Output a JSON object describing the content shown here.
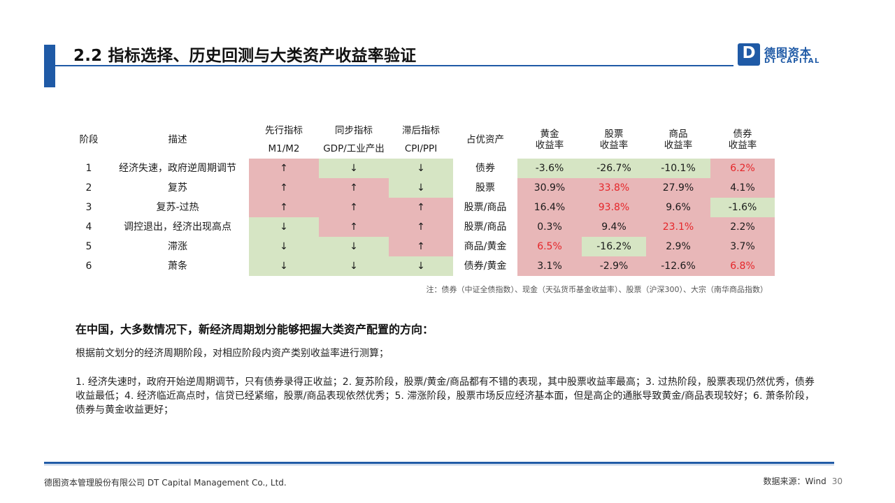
{
  "header": {
    "title": "2.2 指标选择、历史回测与大类资产收益率验证",
    "logo_mark": "D",
    "logo_cn": "德图资本",
    "logo_en": "DT CAPITAL"
  },
  "table": {
    "headers": {
      "stage": "阶段",
      "desc": "描述",
      "leading_top": "先行指标",
      "leading_bottom": "M1/M2",
      "sync_top": "同步指标",
      "sync_bottom": "GDP/工业产出",
      "lag_top": "滞后指标",
      "lag_bottom": "CPI/PPI",
      "dominant": "占优资产",
      "gold": "黄金\n收益率",
      "stock": "股票\n收益率",
      "commodity": "商品\n收益率",
      "bond": "债券\n收益率"
    },
    "rows": [
      {
        "stage": "1",
        "desc": "经济失速，政府逆周期调节",
        "m1": "↑",
        "gdp": "↓",
        "cpi": "↓",
        "dominant": "债券",
        "gold": "-3.6%",
        "stock": "-26.7%",
        "commodity": "-10.1%",
        "bond": "6.2%"
      },
      {
        "stage": "2",
        "desc": "复苏",
        "m1": "↑",
        "gdp": "↑",
        "cpi": "↓",
        "dominant": "股票",
        "gold": "30.9%",
        "stock": "33.8%",
        "commodity": "27.9%",
        "bond": "4.1%"
      },
      {
        "stage": "3",
        "desc": "复苏-过热",
        "m1": "↑",
        "gdp": "↑",
        "cpi": "↑",
        "dominant": "股票/商品",
        "gold": "16.4%",
        "stock": "93.8%",
        "commodity": "9.6%",
        "bond": "-1.6%"
      },
      {
        "stage": "4",
        "desc": "调控退出，经济出现高点",
        "m1": "↓",
        "gdp": "↑",
        "cpi": "↑",
        "dominant": "股票/商品",
        "gold": "0.3%",
        "stock": "9.4%",
        "commodity": "23.1%",
        "bond": "2.2%"
      },
      {
        "stage": "5",
        "desc": "滞涨",
        "m1": "↓",
        "gdp": "↓",
        "cpi": "↑",
        "dominant": "商品/黄金",
        "gold": "6.5%",
        "stock": "-16.2%",
        "commodity": "2.9%",
        "bond": "3.7%"
      },
      {
        "stage": "6",
        "desc": "萧条",
        "m1": "↓",
        "gdp": "↓",
        "cpi": "↓",
        "dominant": "债券/黄金",
        "gold": "3.1%",
        "stock": "-2.9%",
        "commodity": "-12.6%",
        "bond": "6.8%"
      }
    ],
    "note": "注：债券（中证全债指数）、现金（天弘货币基金收益率）、股票（沪深300）、大宗（南华商品指数）"
  },
  "body": {
    "heading": "在中国，大多数情况下，新经济周期划分能够把握大类资产配置的方向：",
    "p1": "根据前文划分的经济周期阶段，对相应阶段内资产类别收益率进行测算；",
    "p2": "1. 经济失速时，政府开始逆周期调节，只有债券录得正收益；2. 复苏阶段，股票/黄金/商品都有不错的表现，其中股票收益率最高；3. 过热阶段，股票表现仍然优秀，债券收益最低；4. 经济临近高点时，信贷已经紧缩，股票/商品表现依然优秀；5. 滞涨阶段，股票市场反应经济基本面，但是高企的通胀导致黄金/商品表现较好；6. 萧条阶段，债券与黄金收益更好；"
  },
  "footer": {
    "company": "德图资本管理股份有限公司  DT Capital  Management  Co., Ltd.",
    "source": "数据来源：Wind",
    "page": "30"
  },
  "colors": {
    "brand_blue": "#1f5aa6",
    "cell_red": "#e8b7b8",
    "cell_green": "#d6e5c4",
    "highlight_text": "#e5262a"
  }
}
